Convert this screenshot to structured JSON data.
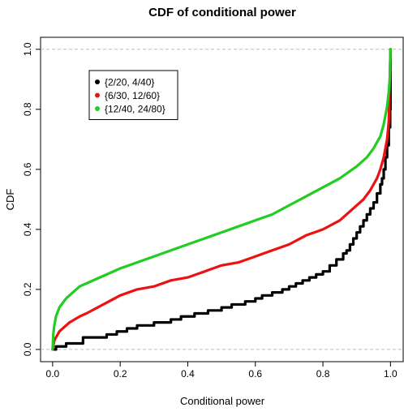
{
  "chart_data": {
    "type": "line",
    "title": "CDF of conditional power",
    "xlabel": "Conditional power",
    "ylabel": "CDF",
    "xlim": [
      0,
      1
    ],
    "ylim": [
      0,
      1
    ],
    "x_ticks": [
      "0.0",
      "0.2",
      "0.4",
      "0.6",
      "0.8",
      "1.0"
    ],
    "y_ticks": [
      "0.0",
      "0.2",
      "0.4",
      "0.6",
      "0.8",
      "1.0"
    ],
    "reference_lines_y": [
      0,
      1
    ],
    "reference_line_color": "#bbbbbb",
    "grid": false,
    "legend_position": "top-left",
    "series": [
      {
        "name": "{2/20, 4/40}",
        "color": "#000000",
        "step": true,
        "x": [
          0.0,
          0.01,
          0.04,
          0.09,
          0.16,
          0.19,
          0.22,
          0.25,
          0.3,
          0.35,
          0.38,
          0.42,
          0.46,
          0.5,
          0.53,
          0.57,
          0.6,
          0.62,
          0.65,
          0.68,
          0.7,
          0.72,
          0.74,
          0.76,
          0.78,
          0.8,
          0.82,
          0.84,
          0.86,
          0.87,
          0.88,
          0.89,
          0.9,
          0.91,
          0.92,
          0.93,
          0.94,
          0.95,
          0.96,
          0.97,
          0.975,
          0.98,
          0.985,
          0.99,
          0.995,
          0.999,
          1.0
        ],
        "y": [
          0.0,
          0.01,
          0.02,
          0.04,
          0.05,
          0.06,
          0.07,
          0.08,
          0.09,
          0.1,
          0.11,
          0.12,
          0.13,
          0.14,
          0.15,
          0.16,
          0.17,
          0.18,
          0.19,
          0.2,
          0.21,
          0.22,
          0.23,
          0.24,
          0.25,
          0.26,
          0.28,
          0.3,
          0.32,
          0.33,
          0.35,
          0.37,
          0.39,
          0.41,
          0.43,
          0.45,
          0.47,
          0.49,
          0.52,
          0.55,
          0.57,
          0.6,
          0.64,
          0.68,
          0.74,
          0.8,
          1.0
        ]
      },
      {
        "name": "{6/30, 12/60}",
        "color": "#ee1111",
        "step": false,
        "x": [
          0.0,
          0.005,
          0.02,
          0.05,
          0.08,
          0.1,
          0.15,
          0.2,
          0.25,
          0.3,
          0.35,
          0.4,
          0.45,
          0.5,
          0.55,
          0.6,
          0.65,
          0.7,
          0.75,
          0.8,
          0.85,
          0.88,
          0.9,
          0.92,
          0.94,
          0.96,
          0.97,
          0.98,
          0.99,
          0.995,
          1.0
        ],
        "y": [
          0.0,
          0.03,
          0.06,
          0.09,
          0.11,
          0.12,
          0.15,
          0.18,
          0.2,
          0.21,
          0.23,
          0.24,
          0.26,
          0.28,
          0.29,
          0.31,
          0.33,
          0.35,
          0.38,
          0.4,
          0.43,
          0.46,
          0.48,
          0.5,
          0.53,
          0.57,
          0.6,
          0.64,
          0.7,
          0.76,
          1.0
        ]
      },
      {
        "name": "{12/40, 24/80}",
        "color": "#22cc22",
        "step": false,
        "x": [
          0.0,
          0.002,
          0.005,
          0.01,
          0.02,
          0.04,
          0.06,
          0.08,
          0.1,
          0.15,
          0.2,
          0.25,
          0.3,
          0.35,
          0.4,
          0.45,
          0.5,
          0.55,
          0.6,
          0.65,
          0.7,
          0.75,
          0.8,
          0.85,
          0.9,
          0.93,
          0.95,
          0.97,
          0.98,
          0.99,
          0.995,
          0.998,
          1.0
        ],
        "y": [
          0.0,
          0.05,
          0.08,
          0.11,
          0.14,
          0.17,
          0.19,
          0.21,
          0.22,
          0.245,
          0.27,
          0.29,
          0.31,
          0.33,
          0.35,
          0.37,
          0.39,
          0.41,
          0.43,
          0.45,
          0.48,
          0.51,
          0.54,
          0.57,
          0.61,
          0.64,
          0.67,
          0.71,
          0.75,
          0.81,
          0.86,
          0.9,
          1.0
        ]
      }
    ]
  }
}
